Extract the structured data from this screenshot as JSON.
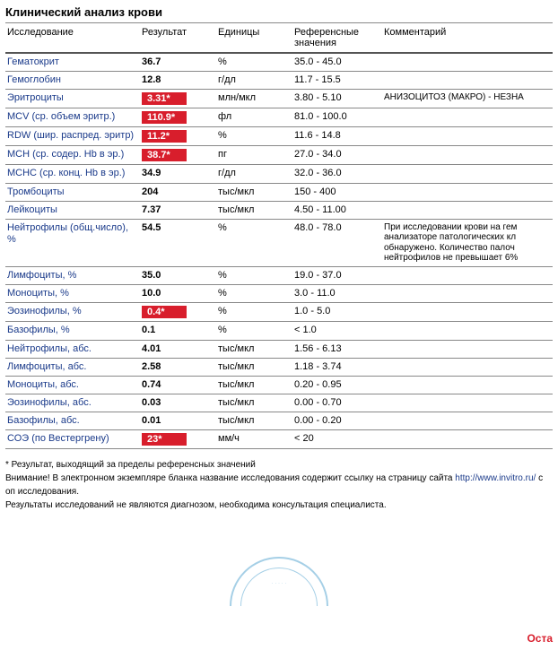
{
  "title": "Клинический анализ крови",
  "columns": {
    "name": "Исследование",
    "result": "Результат",
    "units": "Единицы",
    "reference": "Референсные значения",
    "comment": "Комментарий"
  },
  "rows": [
    {
      "name": "Гематокрит",
      "result": "36.7",
      "flag": false,
      "units": "%",
      "ref": "35.0 - 45.0",
      "comment": ""
    },
    {
      "name": "Гемоглобин",
      "result": "12.8",
      "flag": false,
      "units": "г/дл",
      "ref": "11.7 - 15.5",
      "comment": ""
    },
    {
      "name": "Эритроциты",
      "result": "3.31*",
      "flag": true,
      "units": "млн/мкл",
      "ref": "3.80 - 5.10",
      "comment": "АНИЗОЦИТОЗ (МАКРО) - НЕЗНА"
    },
    {
      "name": "MCV (ср. объем эритр.)",
      "result": "110.9*",
      "flag": true,
      "units": "фл",
      "ref": "81.0 - 100.0",
      "comment": ""
    },
    {
      "name": "RDW (шир. распред. эритр)",
      "result": "11.2*",
      "flag": true,
      "units": "%",
      "ref": "11.6 - 14.8",
      "comment": ""
    },
    {
      "name": "MCH (ср. содер. Hb в эр.)",
      "result": "38.7*",
      "flag": true,
      "units": "пг",
      "ref": "27.0 - 34.0",
      "comment": ""
    },
    {
      "name": "MCHC (ср. конц. Hb в эр.)",
      "result": "34.9",
      "flag": false,
      "units": "г/дл",
      "ref": "32.0 - 36.0",
      "comment": ""
    },
    {
      "name": "Тромбоциты",
      "result": "204",
      "flag": false,
      "units": "тыс/мкл",
      "ref": "150 - 400",
      "comment": ""
    },
    {
      "name": "Лейкоциты",
      "result": "7.37",
      "flag": false,
      "units": "тыс/мкл",
      "ref": "4.50 - 11.00",
      "comment": ""
    },
    {
      "name": "Нейтрофилы (общ.число), %",
      "result": "54.5",
      "flag": false,
      "units": "%",
      "ref": "48.0 - 78.0",
      "comment": "При исследовании крови на гем анализаторе патологических кл обнаружено. Количество палоч нейтрофилов не превышает 6%"
    },
    {
      "name": "Лимфоциты, %",
      "result": "35.0",
      "flag": false,
      "units": "%",
      "ref": "19.0 - 37.0",
      "comment": ""
    },
    {
      "name": "Моноциты, %",
      "result": "10.0",
      "flag": false,
      "units": "%",
      "ref": "3.0 - 11.0",
      "comment": ""
    },
    {
      "name": "Эозинофилы, %",
      "result": "0.4*",
      "flag": true,
      "units": "%",
      "ref": "1.0 - 5.0",
      "comment": ""
    },
    {
      "name": "Базофилы, %",
      "result": "0.1",
      "flag": false,
      "units": "%",
      "ref": "< 1.0",
      "comment": ""
    },
    {
      "name": "Нейтрофилы, абс.",
      "result": "4.01",
      "flag": false,
      "units": "тыс/мкл",
      "ref": "1.56 - 6.13",
      "comment": ""
    },
    {
      "name": "Лимфоциты, абс.",
      "result": "2.58",
      "flag": false,
      "units": "тыс/мкл",
      "ref": "1.18 - 3.74",
      "comment": ""
    },
    {
      "name": "Моноциты, абс.",
      "result": "0.74",
      "flag": false,
      "units": "тыс/мкл",
      "ref": "0.20 - 0.95",
      "comment": ""
    },
    {
      "name": "Эозинофилы, абс.",
      "result": "0.03",
      "flag": false,
      "units": "тыс/мкл",
      "ref": "0.00 - 0.70",
      "comment": ""
    },
    {
      "name": "Базофилы, абс.",
      "result": "0.01",
      "flag": false,
      "units": "тыс/мкл",
      "ref": "0.00 - 0.20",
      "comment": ""
    },
    {
      "name": "СОЭ (по Вестергрену)",
      "result": "23*",
      "flag": true,
      "units": "мм/ч",
      "ref": "< 20",
      "comment": ""
    }
  ],
  "notes": {
    "line1": "* Результат, выходящий за пределы референсных значений",
    "line2_a": "Внимание! В электронном экземпляре бланка название исследования содержит ссылку на страницу сайта ",
    "line2_link": "http://www.invitro.ru/",
    "line2_b": " с оп исследования.",
    "line3": "Результаты исследований не являются диагнозом, необходима консультация специалиста."
  },
  "stamp_text": "· · · · ·",
  "corner": "Оста"
}
